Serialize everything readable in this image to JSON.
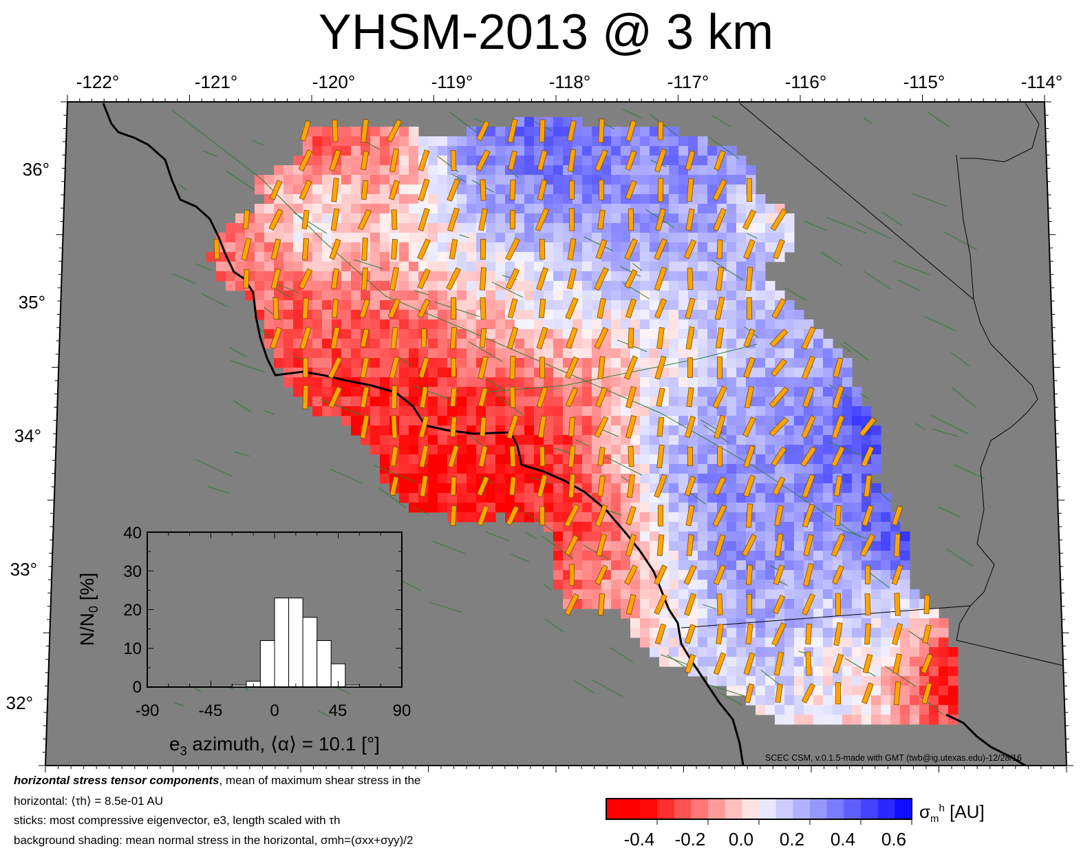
{
  "title": "YHSM-2013 @ 3 km",
  "map": {
    "lon_labels": [
      "-122°",
      "-121°",
      "-120°",
      "-119°",
      "-118°",
      "-117°",
      "-116°",
      "-115°",
      "-114°"
    ],
    "lat_labels": [
      "36°",
      "35°",
      "34°",
      "33°",
      "32°"
    ],
    "lon_range": [
      -122,
      -114
    ],
    "lat_range": [
      31.5,
      36.5
    ],
    "colors": {
      "ocean_land": "#808080",
      "coast": "#000000",
      "faults": "#2e7d32",
      "sticks": "#ffa500",
      "negative": "#ff0000",
      "positive": "#0000ff"
    }
  },
  "inset": {
    "type": "bar",
    "ylabel": "N/N0 [%]",
    "ylabel_base": "N/N",
    "ylabel_sub": "0",
    "ylabel_unit": " [%]",
    "xlabel_prefix": "e",
    "xlabel_sub": "3",
    "xlabel_rest": " azimuth, ⟨α⟩ = 10.1 [°]",
    "ylim": [
      0,
      40
    ],
    "xlim": [
      -90,
      90
    ],
    "y_ticks": [
      "0",
      "10",
      "20",
      "30",
      "40"
    ],
    "x_ticks": [
      "-90",
      "-45",
      "0",
      "45",
      "90"
    ],
    "bin_width": 10,
    "bins": [
      {
        "x0": -30,
        "value": 0.5
      },
      {
        "x0": -20,
        "value": 1.5
      },
      {
        "x0": -10,
        "value": 12
      },
      {
        "x0": 0,
        "value": 23
      },
      {
        "x0": 10,
        "value": 23
      },
      {
        "x0": 20,
        "value": 18
      },
      {
        "x0": 30,
        "value": 12
      },
      {
        "x0": 40,
        "value": 6
      },
      {
        "x0": 50,
        "value": 0.5
      }
    ]
  },
  "colorbar": {
    "labels": [
      "-0.4",
      "-0.2",
      "0.0",
      "0.2",
      "0.4",
      "0.6"
    ],
    "range": [
      -0.6,
      0.6
    ],
    "unit_main": "σ",
    "unit_sub": "m",
    "unit_sup": "h",
    "unit_rest": " [AU]"
  },
  "caption": {
    "line1_bold": "horizontal stress tensor components",
    "line1_rest": ", mean of maximum shear stress in the",
    "line2": "horizontal: ⟨τh⟩ = 8.5e-01 AU",
    "line3": "sticks: most compressive eigenvector, e3, length scaled with τh",
    "line4": "background shading: mean normal stress in the horizontal, σmh=(σxx+σyy)/2"
  },
  "credit": "SCEC CSM, v.0.1.5-made with GMT (twb@ig.utexas.edu)-12/28/16"
}
